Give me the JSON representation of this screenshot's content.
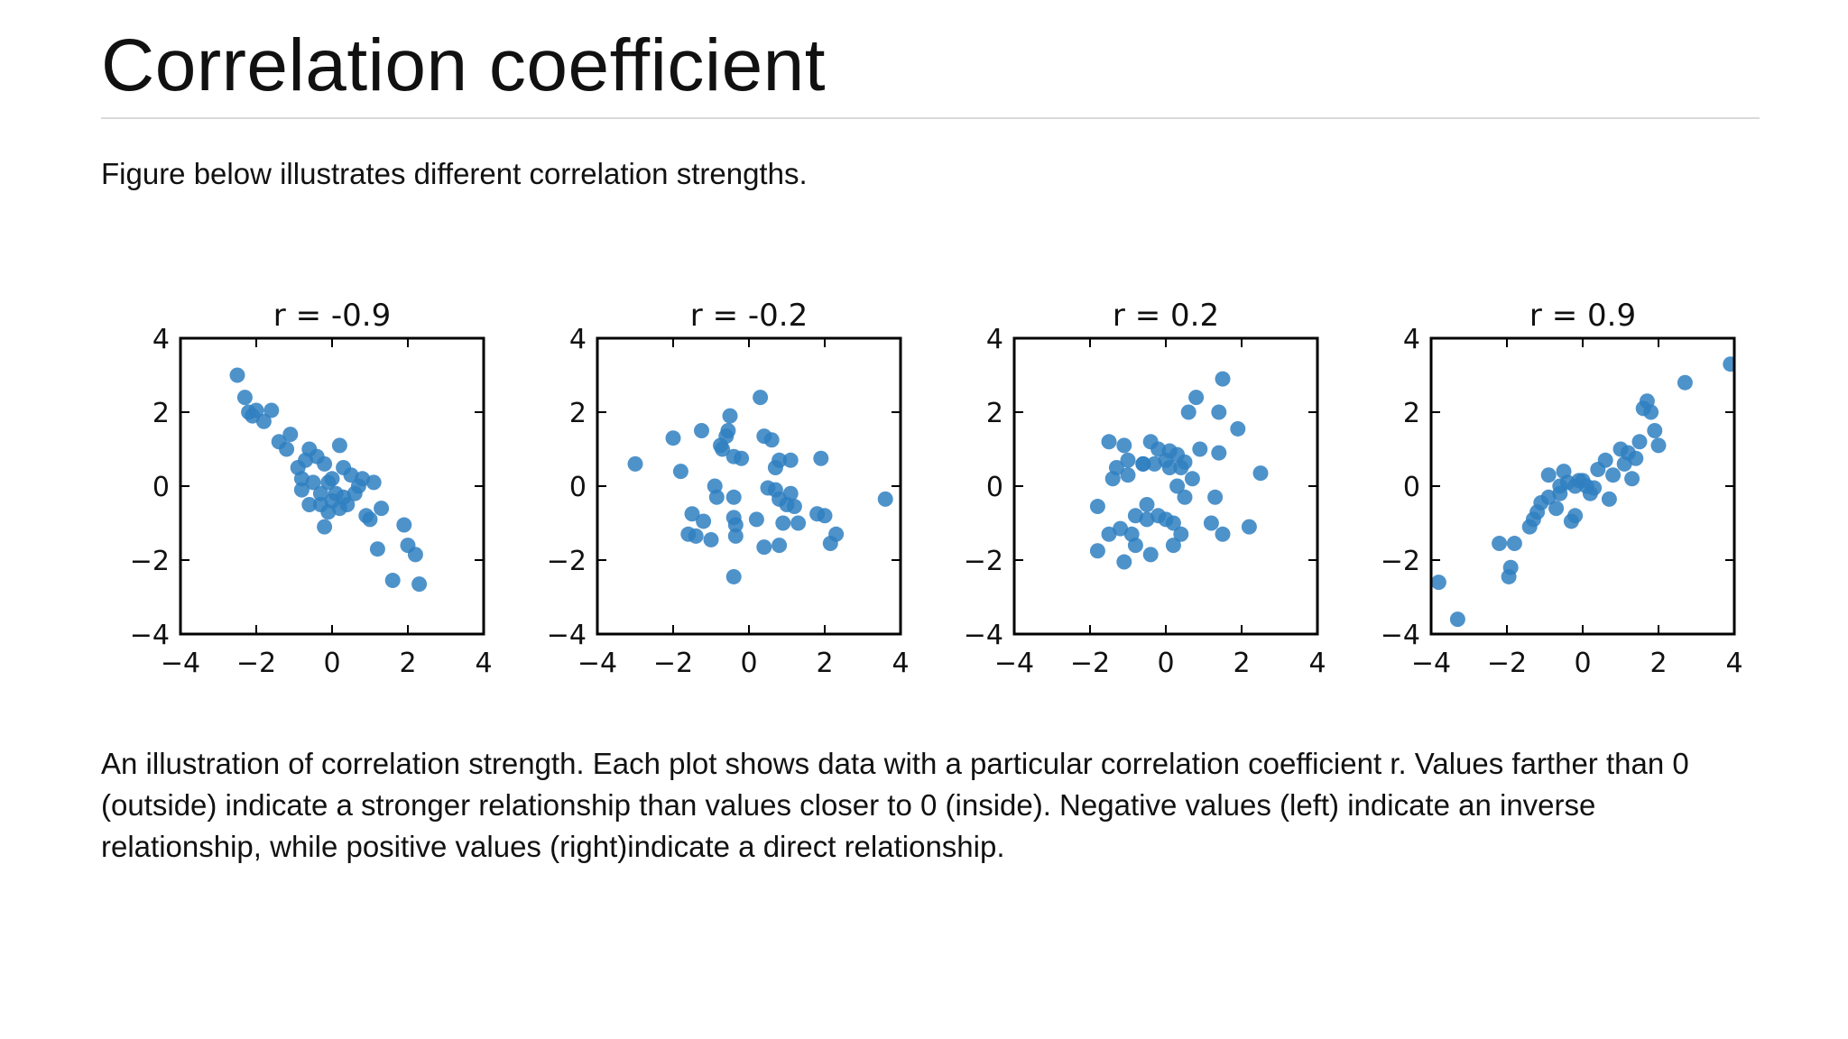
{
  "slide": {
    "title": "Correlation coefficient",
    "intro": "Figure below illustrates different correlation strengths.",
    "caption": "An illustration of correlation strength. Each plot shows data with a particular correlation coefficient r. Values farther than 0 (outside) indicate a stronger relationship than values closer to 0 (inside). Negative values (left) indicate an inverse relationship, while positive values (right)indicate a direct relationship."
  },
  "colors": {
    "point": "#2f7fc1",
    "axis": "#000000",
    "title_rule": "#d9d9d9"
  },
  "chart_data": [
    {
      "type": "scatter",
      "title": "r = -0.9",
      "xlim": [
        -4,
        4
      ],
      "ylim": [
        -4,
        4
      ],
      "xticks": [
        -4,
        -2,
        0,
        2,
        4
      ],
      "yticks": [
        -4,
        -2,
        0,
        2,
        4
      ],
      "xtick_labels": [
        "−4",
        "−2",
        "0",
        "2",
        "4"
      ],
      "ytick_labels": [
        "−4",
        "−2",
        "0",
        "2",
        "4"
      ],
      "grid": false,
      "points": [
        [
          -2.5,
          3.0
        ],
        [
          -2.3,
          2.4
        ],
        [
          -2.2,
          2.0
        ],
        [
          -2.0,
          2.05
        ],
        [
          -1.8,
          1.75
        ],
        [
          -1.6,
          2.05
        ],
        [
          -2.1,
          1.9
        ],
        [
          -1.4,
          1.2
        ],
        [
          -1.1,
          1.4
        ],
        [
          -1.2,
          1.0
        ],
        [
          -0.9,
          0.5
        ],
        [
          -0.6,
          1.0
        ],
        [
          -0.7,
          0.7
        ],
        [
          -0.4,
          0.8
        ],
        [
          -0.2,
          0.6
        ],
        [
          0.2,
          1.1
        ],
        [
          0.3,
          0.5
        ],
        [
          -0.8,
          0.2
        ],
        [
          -0.5,
          0.1
        ],
        [
          -0.3,
          -0.2
        ],
        [
          -0.6,
          -0.5
        ],
        [
          -0.3,
          -0.5
        ],
        [
          -0.1,
          0.1
        ],
        [
          0.0,
          0.2
        ],
        [
          0.1,
          -0.2
        ],
        [
          0.0,
          -0.4
        ],
        [
          -0.1,
          -0.7
        ],
        [
          0.2,
          -0.6
        ],
        [
          0.4,
          -0.5
        ],
        [
          0.5,
          0.3
        ],
        [
          0.7,
          0.0
        ],
        [
          0.8,
          0.2
        ],
        [
          0.9,
          -0.8
        ],
        [
          1.0,
          -0.9
        ],
        [
          1.1,
          0.1
        ],
        [
          1.2,
          -1.7
        ],
        [
          1.3,
          -0.6
        ],
        [
          -0.2,
          -1.1
        ],
        [
          -0.8,
          -0.1
        ],
        [
          1.9,
          -1.05
        ],
        [
          2.0,
          -1.6
        ],
        [
          2.2,
          -1.85
        ],
        [
          1.6,
          -2.55
        ],
        [
          2.3,
          -2.65
        ],
        [
          0.6,
          -0.2
        ],
        [
          0.3,
          -0.3
        ]
      ]
    },
    {
      "type": "scatter",
      "title": "r = -0.2",
      "xlim": [
        -4,
        4
      ],
      "ylim": [
        -4,
        4
      ],
      "xticks": [
        -4,
        -2,
        0,
        2,
        4
      ],
      "yticks": [
        -4,
        -2,
        0,
        2,
        4
      ],
      "xtick_labels": [
        "−4",
        "−2",
        "0",
        "2",
        "4"
      ],
      "ytick_labels": [
        "−4",
        "−2",
        "0",
        "2",
        "4"
      ],
      "grid": false,
      "points": [
        [
          -3.0,
          0.6
        ],
        [
          -2.0,
          1.3
        ],
        [
          -1.25,
          1.5
        ],
        [
          -0.75,
          1.1
        ],
        [
          -0.6,
          1.35
        ],
        [
          -0.5,
          1.9
        ],
        [
          -0.55,
          1.5
        ],
        [
          -0.7,
          1.0
        ],
        [
          -0.4,
          0.8
        ],
        [
          -0.2,
          0.75
        ],
        [
          0.3,
          2.4
        ],
        [
          0.4,
          1.35
        ],
        [
          0.6,
          1.25
        ],
        [
          0.7,
          0.5
        ],
        [
          0.8,
          0.7
        ],
        [
          1.1,
          0.7
        ],
        [
          1.9,
          0.75
        ],
        [
          -1.8,
          0.4
        ],
        [
          -0.9,
          0.0
        ],
        [
          -0.85,
          -0.3
        ],
        [
          -0.4,
          -0.3
        ],
        [
          0.5,
          -0.05
        ],
        [
          0.7,
          -0.1
        ],
        [
          0.8,
          -0.35
        ],
        [
          1.0,
          -0.5
        ],
        [
          1.1,
          -0.2
        ],
        [
          1.2,
          -0.55
        ],
        [
          0.9,
          -1.0
        ],
        [
          1.3,
          -1.0
        ],
        [
          1.8,
          -0.75
        ],
        [
          2.0,
          -0.8
        ],
        [
          2.3,
          -1.3
        ],
        [
          2.15,
          -1.55
        ],
        [
          -1.5,
          -0.75
        ],
        [
          -1.4,
          -1.35
        ],
        [
          -1.2,
          -0.95
        ],
        [
          -1.6,
          -1.3
        ],
        [
          -1.0,
          -1.45
        ],
        [
          -0.4,
          -0.85
        ],
        [
          -0.35,
          -1.05
        ],
        [
          -0.35,
          -1.35
        ],
        [
          0.2,
          -0.9
        ],
        [
          0.4,
          -1.65
        ],
        [
          0.8,
          -1.6
        ],
        [
          -0.4,
          -2.45
        ],
        [
          3.6,
          -0.35
        ]
      ]
    },
    {
      "type": "scatter",
      "title": "r = 0.2",
      "xlim": [
        -4,
        4
      ],
      "ylim": [
        -4,
        4
      ],
      "xticks": [
        -4,
        -2,
        0,
        2,
        4
      ],
      "yticks": [
        -4,
        -2,
        0,
        2,
        4
      ],
      "xtick_labels": [
        "−4",
        "−2",
        "0",
        "2",
        "4"
      ],
      "ytick_labels": [
        "−4",
        "−2",
        "0",
        "2",
        "4"
      ],
      "grid": false,
      "points": [
        [
          1.5,
          2.9
        ],
        [
          0.8,
          2.4
        ],
        [
          0.6,
          2.0
        ],
        [
          1.4,
          2.0
        ],
        [
          1.9,
          1.55
        ],
        [
          2.5,
          0.35
        ],
        [
          -1.5,
          1.2
        ],
        [
          -1.1,
          1.1
        ],
        [
          -1.3,
          0.5
        ],
        [
          -1.0,
          0.7
        ],
        [
          -0.6,
          0.6
        ],
        [
          -0.4,
          1.2
        ],
        [
          -0.2,
          1.0
        ],
        [
          -0.3,
          0.6
        ],
        [
          0.1,
          0.95
        ],
        [
          0.3,
          0.85
        ],
        [
          0.5,
          0.65
        ],
        [
          0.9,
          1.0
        ],
        [
          1.4,
          0.9
        ],
        [
          0.0,
          0.7
        ],
        [
          0.1,
          0.5
        ],
        [
          -0.6,
          0.6
        ],
        [
          0.4,
          0.5
        ],
        [
          0.7,
          0.2
        ],
        [
          0.3,
          0.0
        ],
        [
          0.5,
          -0.3
        ],
        [
          1.3,
          -0.3
        ],
        [
          -1.4,
          0.2
        ],
        [
          -1.0,
          0.3
        ],
        [
          -1.8,
          -0.55
        ],
        [
          -0.5,
          -0.5
        ],
        [
          -0.8,
          -0.8
        ],
        [
          -0.5,
          -0.9
        ],
        [
          -0.2,
          -0.8
        ],
        [
          0.0,
          -0.9
        ],
        [
          0.2,
          -1.0
        ],
        [
          0.4,
          -1.3
        ],
        [
          -1.5,
          -1.3
        ],
        [
          -1.2,
          -1.15
        ],
        [
          -0.9,
          -1.3
        ],
        [
          -0.8,
          -1.6
        ],
        [
          -0.4,
          -1.85
        ],
        [
          0.2,
          -1.6
        ],
        [
          -1.8,
          -1.75
        ],
        [
          -1.1,
          -2.05
        ],
        [
          1.5,
          -1.3
        ],
        [
          1.2,
          -1.0
        ],
        [
          2.2,
          -1.1
        ]
      ]
    },
    {
      "type": "scatter",
      "title": "r = 0.9",
      "xlim": [
        -4,
        4
      ],
      "ylim": [
        -4,
        4
      ],
      "xticks": [
        -4,
        -2,
        0,
        2,
        4
      ],
      "yticks": [
        -4,
        -2,
        0,
        2,
        4
      ],
      "xtick_labels": [
        "−4",
        "−2",
        "0",
        "2",
        "4"
      ],
      "ytick_labels": [
        "−4",
        "−2",
        "0",
        "2",
        "4"
      ],
      "grid": false,
      "points": [
        [
          -3.8,
          -2.6
        ],
        [
          -3.3,
          -3.6
        ],
        [
          -2.2,
          -1.55
        ],
        [
          -1.9,
          -2.2
        ],
        [
          -1.95,
          -2.45
        ],
        [
          -1.8,
          -1.55
        ],
        [
          -1.4,
          -1.1
        ],
        [
          -1.3,
          -0.9
        ],
        [
          -1.1,
          -0.45
        ],
        [
          -1.2,
          -0.7
        ],
        [
          -0.9,
          -0.3
        ],
        [
          -0.7,
          -0.6
        ],
        [
          -0.6,
          -0.2
        ],
        [
          -0.9,
          0.3
        ],
        [
          -0.5,
          0.4
        ],
        [
          -0.4,
          0.1
        ],
        [
          -0.2,
          0.0
        ],
        [
          0.0,
          0.15
        ],
        [
          0.1,
          0.0
        ],
        [
          0.3,
          -0.05
        ],
        [
          0.4,
          0.45
        ],
        [
          0.6,
          0.7
        ],
        [
          0.8,
          0.3
        ],
        [
          1.0,
          1.0
        ],
        [
          1.2,
          0.9
        ],
        [
          1.1,
          0.6
        ],
        [
          1.3,
          0.2
        ],
        [
          1.4,
          0.75
        ],
        [
          1.5,
          1.2
        ],
        [
          1.7,
          2.3
        ],
        [
          1.6,
          2.1
        ],
        [
          1.8,
          2.0
        ],
        [
          1.9,
          1.5
        ],
        [
          2.0,
          1.1
        ],
        [
          -0.3,
          -0.95
        ],
        [
          -0.2,
          -0.8
        ],
        [
          0.2,
          -0.2
        ],
        [
          0.7,
          -0.35
        ],
        [
          -0.6,
          0.0
        ],
        [
          2.7,
          2.8
        ],
        [
          3.9,
          3.3
        ],
        [
          -0.1,
          0.15
        ]
      ]
    }
  ]
}
